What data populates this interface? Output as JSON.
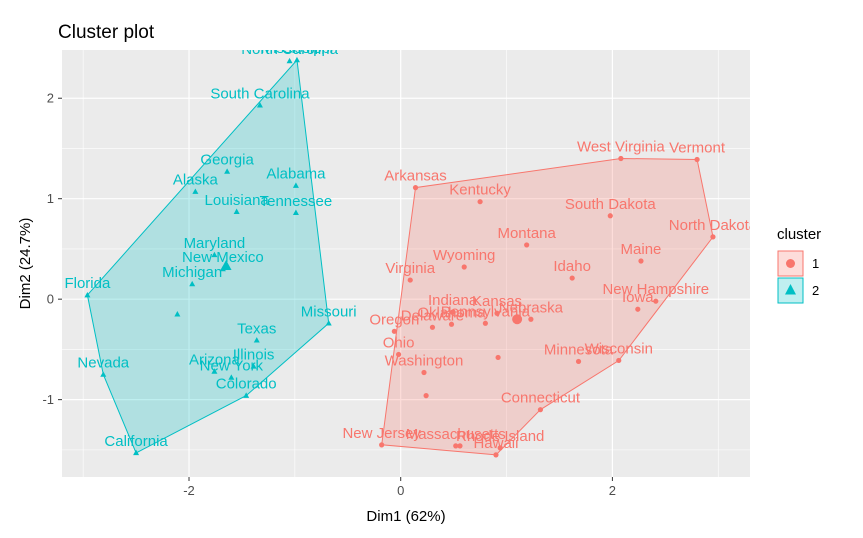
{
  "chart_data": {
    "type": "scatter",
    "title": "Cluster plot",
    "xlabel": "Dim1 (62%)",
    "ylabel": "Dim2 (24.7%)",
    "xlim": [
      -3.2,
      3.3
    ],
    "ylim": [
      -1.77,
      2.48
    ],
    "xticks": [
      -2,
      0,
      2
    ],
    "yticks": [
      -1,
      0,
      1,
      2
    ],
    "grid": true,
    "legend": {
      "title": "cluster",
      "placement": "right",
      "entries": [
        "1",
        "2"
      ]
    },
    "colors": {
      "1": "#F8766D",
      "2": "#00BFC4",
      "panel": "#EBEBEB",
      "grid": "#FFFFFF"
    },
    "series": [
      {
        "name": "1",
        "points": [
          {
            "label": "West Virginia",
            "x": 2.08,
            "y": 1.4
          },
          {
            "label": "Vermont",
            "x": 2.8,
            "y": 1.39
          },
          {
            "label": "Arkansas",
            "x": 0.14,
            "y": 1.11
          },
          {
            "label": "Kentucky",
            "x": 0.75,
            "y": 0.97
          },
          {
            "label": "South Dakota",
            "x": 1.98,
            "y": 0.83
          },
          {
            "label": "North Dakota",
            "x": 2.95,
            "y": 0.62
          },
          {
            "label": "Montana",
            "x": 1.19,
            "y": 0.54
          },
          {
            "label": "Maine",
            "x": 2.27,
            "y": 0.38
          },
          {
            "label": "Virginia",
            "x": 0.09,
            "y": 0.19
          },
          {
            "label": "Wyoming",
            "x": 0.6,
            "y": 0.32
          },
          {
            "label": "Idaho",
            "x": 1.62,
            "y": 0.21
          },
          {
            "label": "New Hampshire",
            "x": 2.41,
            "y": -0.02
          },
          {
            "label": "Iowa",
            "x": 2.24,
            "y": -0.1
          },
          {
            "label": "Indiana",
            "x": 0.49,
            "y": -0.13
          },
          {
            "label": "Nebraska",
            "x": 1.23,
            "y": -0.2
          },
          {
            "label": "Kansas",
            "x": 0.91,
            "y": -0.14
          },
          {
            "label": "Oklahoma",
            "x": 0.48,
            "y": -0.25
          },
          {
            "label": "Delaware",
            "x": 0.3,
            "y": -0.28
          },
          {
            "label": "Pennsylvania",
            "x": 0.8,
            "y": -0.24
          },
          {
            "label": "Oregon",
            "x": -0.06,
            "y": -0.32
          },
          {
            "label": "Wisconsin",
            "x": 2.06,
            "y": -0.61
          },
          {
            "label": "Minnesota",
            "x": 1.68,
            "y": -0.62
          },
          {
            "label": "Ohio",
            "x": -0.02,
            "y": -0.55
          },
          {
            "label": "Washington",
            "x": 0.22,
            "y": -0.73
          },
          {
            "label": "Connecticut",
            "x": 1.32,
            "y": -1.1
          },
          {
            "label": "New Jersey",
            "x": -0.18,
            "y": -1.45
          },
          {
            "label": "Massachusetts",
            "x": 0.52,
            "y": -1.46
          },
          {
            "label": "Rhode Island",
            "x": 0.94,
            "y": -1.48
          },
          {
            "label": "Hawaii",
            "x": 0.9,
            "y": -1.55
          },
          {
            "label": "",
            "x": 0.92,
            "y": -0.58
          },
          {
            "label": "",
            "x": 0.56,
            "y": -1.46
          },
          {
            "label": "",
            "x": 0.24,
            "y": -0.96
          }
        ],
        "hull": [
          [
            -0.18,
            -1.45
          ],
          [
            0.14,
            1.11
          ],
          [
            2.08,
            1.4
          ],
          [
            2.8,
            1.39
          ],
          [
            2.95,
            0.62
          ],
          [
            2.06,
            -0.61
          ],
          [
            1.32,
            -1.1
          ],
          [
            0.9,
            -1.55
          ]
        ],
        "centroid": [
          1.1,
          -0.2
        ]
      },
      {
        "name": "2",
        "points": [
          {
            "label": "Mississippi",
            "x": -0.98,
            "y": 2.38
          },
          {
            "label": "North Carolina",
            "x": -1.05,
            "y": 2.37
          },
          {
            "label": "South Carolina",
            "x": -1.33,
            "y": 1.93
          },
          {
            "label": "Georgia",
            "x": -1.64,
            "y": 1.27
          },
          {
            "label": "Alabama",
            "x": -0.99,
            "y": 1.13
          },
          {
            "label": "Alaska",
            "x": -1.94,
            "y": 1.07
          },
          {
            "label": "Louisiana",
            "x": -1.55,
            "y": 0.87
          },
          {
            "label": "Tennessee",
            "x": -0.99,
            "y": 0.86
          },
          {
            "label": "Maryland",
            "x": -1.76,
            "y": 0.44
          },
          {
            "label": "New Mexico",
            "x": -1.68,
            "y": 0.3
          },
          {
            "label": "Florida",
            "x": -2.96,
            "y": 0.04
          },
          {
            "label": "Michigan",
            "x": -1.97,
            "y": 0.15
          },
          {
            "label": "Missouri",
            "x": -0.68,
            "y": -0.24
          },
          {
            "label": "Texas",
            "x": -1.36,
            "y": -0.41
          },
          {
            "label": "Illinois",
            "x": -1.39,
            "y": -0.67
          },
          {
            "label": "Nevada",
            "x": -2.81,
            "y": -0.75
          },
          {
            "label": "Arizona",
            "x": -1.76,
            "y": -0.72
          },
          {
            "label": "New York",
            "x": -1.6,
            "y": -0.78
          },
          {
            "label": "Colorado",
            "x": -1.46,
            "y": -0.96
          },
          {
            "label": "California",
            "x": -2.5,
            "y": -1.53
          },
          {
            "label": "",
            "x": -2.11,
            "y": -0.15
          }
        ],
        "hull": [
          [
            -2.96,
            0.04
          ],
          [
            -0.98,
            2.38
          ],
          [
            -0.68,
            -0.24
          ],
          [
            -1.46,
            -0.96
          ],
          [
            -2.5,
            -1.53
          ],
          [
            -2.81,
            -0.75
          ]
        ],
        "centroid": [
          -1.65,
          0.33
        ]
      }
    ]
  }
}
